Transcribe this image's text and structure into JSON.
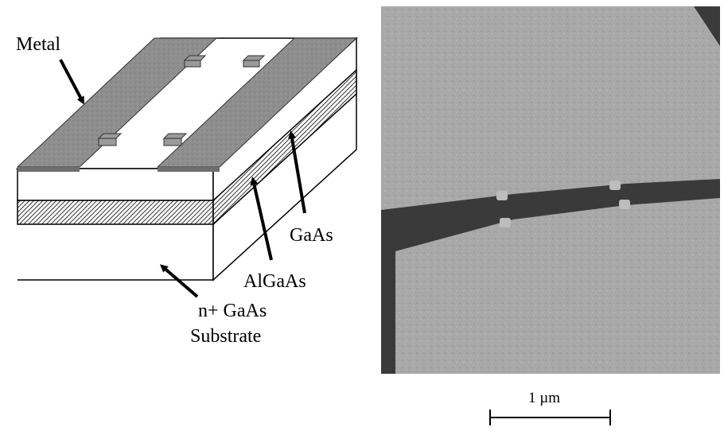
{
  "labels": {
    "metal": "Metal",
    "gaas": "GaAs",
    "algaas": "AlGaAs",
    "substrate_line1": "n+ GaAs",
    "substrate_line2": "Substrate"
  },
  "scale_bar": {
    "label": "1 µm",
    "length_um": 1
  },
  "colors": {
    "metal": "#8e8e8e",
    "algaas_hatch": "#555555",
    "sem_background": "#3a3a3a",
    "sem_pad": "#a9a9a9"
  }
}
